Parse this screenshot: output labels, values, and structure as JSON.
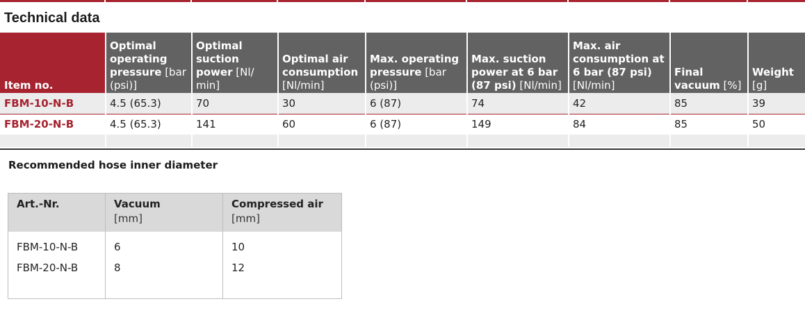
{
  "section_title": "Technical data",
  "tech_table": {
    "headers": [
      {
        "bold": "Item no.",
        "unit": ""
      },
      {
        "bold": "Optimal operating",
        "bold2": "pressure",
        "unit": " [bar (psi)]"
      },
      {
        "bold": "Optimal suction",
        "bold2": "power",
        "unit": " [Nl/ min]"
      },
      {
        "bold": "Optimal air consumption",
        "unit": "[Nl/min]"
      },
      {
        "bold": "Max. operating pressure",
        "unit": " [bar (psi)]"
      },
      {
        "bold": "Max. suction power at 6 bar (87 psi)",
        "unit": " [Nl/min]"
      },
      {
        "bold": "Max. air consumption at 6 bar (87 psi)",
        "unit": "[Nl/min]"
      },
      {
        "bold": "Final vacuum",
        "unit": " [%]"
      },
      {
        "bold": "Weight",
        "unit": "[g]"
      }
    ],
    "rows": [
      [
        "FBM-10-N-B",
        "4.5 (65.3)",
        "70",
        "30",
        "6 (87)",
        "74",
        "42",
        "85",
        "39"
      ],
      [
        "FBM-20-N-B",
        "4.5 (65.3)",
        "141",
        "60",
        "6 (87)",
        "149",
        "84",
        "85",
        "50"
      ]
    ]
  },
  "hose_title": "Recommended hose inner diameter",
  "hose_table": {
    "headers": [
      {
        "label": "Art.-Nr.",
        "unit": ""
      },
      {
        "label": "Vacuum",
        "unit": "[mm]"
      },
      {
        "label": "Compressed air",
        "unit": "[mm]"
      }
    ],
    "rows": [
      [
        "FBM-10-N-B",
        "6",
        "10"
      ],
      [
        "FBM-20-N-B",
        "8",
        "12"
      ]
    ]
  },
  "colors": {
    "brand_red": "#a6232f",
    "header_gray": "#626262",
    "row_gray": "#ececec"
  }
}
